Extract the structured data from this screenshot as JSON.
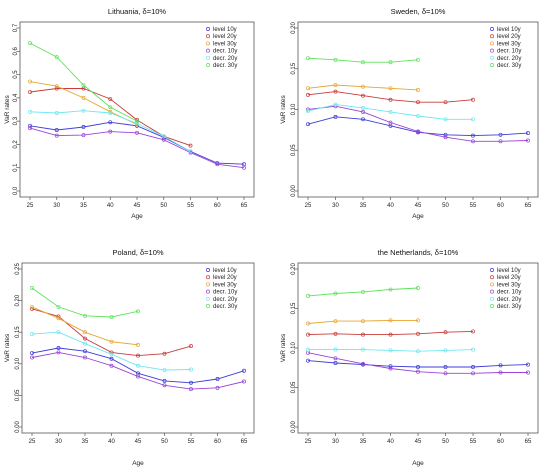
{
  "chart_data": [
    {
      "type": "line",
      "title": "Lithuania, δ=10%",
      "xlabel": "Age",
      "ylabel": "VaR rates",
      "ylim": [
        0,
        0.7
      ],
      "yticks": [
        0.0,
        0.1,
        0.2,
        0.3,
        0.4,
        0.5,
        0.6,
        0.7
      ],
      "ytick_labels": [
        "0.0",
        "0.1",
        "0.2",
        "0.3",
        "0.4",
        "0.5",
        "0.6",
        "0.7"
      ],
      "xlim": [
        25,
        65
      ],
      "xticks": [
        25,
        30,
        35,
        40,
        45,
        50,
        55,
        60,
        65
      ],
      "legend_position": "top-right",
      "series": [
        {
          "name": "level 10y",
          "color": "#3c3cd8",
          "x": [
            25,
            30,
            35,
            40,
            45,
            50,
            55,
            60,
            65
          ],
          "values": [
            0.28,
            0.262,
            0.275,
            0.295,
            0.28,
            0.23,
            0.17,
            0.12,
            0.115
          ]
        },
        {
          "name": "level 20y",
          "color": "#c83c3c",
          "x": [
            25,
            30,
            35,
            40,
            45,
            50,
            55
          ],
          "values": [
            0.425,
            0.44,
            0.44,
            0.395,
            0.305,
            0.235,
            0.195
          ]
        },
        {
          "name": "level 30y",
          "color": "#e6a632",
          "x": [
            25,
            30,
            35,
            40,
            45
          ],
          "values": [
            0.47,
            0.45,
            0.4,
            0.34,
            0.285
          ]
        },
        {
          "name": "decr. 10y",
          "color": "#9b45d6",
          "x": [
            25,
            30,
            35,
            40,
            45,
            50,
            55,
            60,
            65
          ],
          "values": [
            0.27,
            0.238,
            0.24,
            0.255,
            0.25,
            0.22,
            0.165,
            0.115,
            0.1
          ]
        },
        {
          "name": "decr. 20y",
          "color": "#6fe8f0",
          "x": [
            25,
            30,
            35,
            40,
            45,
            50,
            55
          ],
          "values": [
            0.34,
            0.335,
            0.345,
            0.335,
            0.29,
            0.235,
            0.17
          ]
        },
        {
          "name": "decr. 30y",
          "color": "#5ee35e",
          "x": [
            25,
            30,
            35,
            40,
            45
          ],
          "values": [
            0.635,
            0.575,
            0.455,
            0.36,
            0.3
          ]
        }
      ]
    },
    {
      "type": "line",
      "title": "Sweden, δ=10%",
      "xlabel": "Age",
      "ylabel": "VaR rates",
      "ylim": [
        0,
        0.2
      ],
      "yticks": [
        0.0,
        0.05,
        0.1,
        0.15,
        0.2
      ],
      "ytick_labels": [
        "0.00",
        "0.05",
        "0.10",
        "0.15",
        "0.20"
      ],
      "xlim": [
        25,
        65
      ],
      "xticks": [
        25,
        30,
        35,
        40,
        45,
        50,
        55,
        60,
        65
      ],
      "legend_position": "top-right",
      "series": [
        {
          "name": "level 10y",
          "color": "#3c3cd8",
          "x": [
            25,
            30,
            35,
            40,
            45,
            50,
            55,
            60,
            65
          ],
          "values": [
            0.082,
            0.091,
            0.088,
            0.08,
            0.072,
            0.069,
            0.068,
            0.069,
            0.071
          ]
        },
        {
          "name": "level 20y",
          "color": "#c83c3c",
          "x": [
            25,
            30,
            35,
            40,
            45,
            50,
            55
          ],
          "values": [
            0.118,
            0.122,
            0.117,
            0.112,
            0.109,
            0.109,
            0.112
          ]
        },
        {
          "name": "level 30y",
          "color": "#e6a632",
          "x": [
            25,
            30,
            35,
            40,
            45
          ],
          "values": [
            0.126,
            0.13,
            0.128,
            0.126,
            0.124
          ]
        },
        {
          "name": "decr. 10y",
          "color": "#9b45d6",
          "x": [
            25,
            30,
            35,
            40,
            45,
            50,
            55,
            60,
            65
          ],
          "values": [
            0.1,
            0.104,
            0.097,
            0.084,
            0.073,
            0.066,
            0.061,
            0.061,
            0.062
          ]
        },
        {
          "name": "decr. 20y",
          "color": "#6fe8f0",
          "x": [
            25,
            30,
            35,
            40,
            45,
            50,
            55
          ],
          "values": [
            0.098,
            0.106,
            0.102,
            0.097,
            0.092,
            0.088,
            0.088
          ]
        },
        {
          "name": "decr. 30y",
          "color": "#5ee35e",
          "x": [
            25,
            30,
            35,
            40,
            45
          ],
          "values": [
            0.163,
            0.161,
            0.158,
            0.158,
            0.161
          ]
        }
      ]
    },
    {
      "type": "line",
      "title": "Poland, δ=10%",
      "xlabel": "Age",
      "ylabel": "VaR rates",
      "ylim": [
        0,
        0.25
      ],
      "yticks": [
        0.0,
        0.05,
        0.1,
        0.15,
        0.2,
        0.25
      ],
      "ytick_labels": [
        "0.00",
        "0.05",
        "0.10",
        "0.15",
        "0.20",
        "0.25"
      ],
      "xlim": [
        25,
        65
      ],
      "xticks": [
        25,
        30,
        35,
        40,
        45,
        50,
        55,
        60,
        65
      ],
      "legend_position": "top-right",
      "series": [
        {
          "name": "level 10y",
          "color": "#3c3cd8",
          "x": [
            25,
            30,
            35,
            40,
            45,
            50,
            55,
            60,
            65
          ],
          "values": [
            0.117,
            0.125,
            0.12,
            0.108,
            0.085,
            0.073,
            0.07,
            0.076,
            0.089
          ]
        },
        {
          "name": "level 20y",
          "color": "#c83c3c",
          "x": [
            25,
            30,
            35,
            40,
            45,
            50,
            55
          ],
          "values": [
            0.187,
            0.175,
            0.14,
            0.118,
            0.113,
            0.116,
            0.128
          ]
        },
        {
          "name": "level 30y",
          "color": "#e6a632",
          "x": [
            25,
            30,
            35,
            40,
            45
          ],
          "values": [
            0.19,
            0.172,
            0.15,
            0.135,
            0.13
          ]
        },
        {
          "name": "decr. 10y",
          "color": "#9b45d6",
          "x": [
            25,
            30,
            35,
            40,
            45,
            50,
            55,
            60,
            65
          ],
          "values": [
            0.11,
            0.118,
            0.11,
            0.097,
            0.08,
            0.066,
            0.06,
            0.062,
            0.072
          ]
        },
        {
          "name": "decr. 20y",
          "color": "#6fe8f0",
          "x": [
            25,
            30,
            35,
            40,
            45,
            50,
            55
          ],
          "values": [
            0.147,
            0.15,
            0.132,
            0.115,
            0.097,
            0.09,
            0.091
          ]
        },
        {
          "name": "decr. 30y",
          "color": "#5ee35e",
          "x": [
            25,
            30,
            35,
            40,
            45
          ],
          "values": [
            0.22,
            0.19,
            0.176,
            0.174,
            0.183
          ]
        }
      ]
    },
    {
      "type": "line",
      "title": "the Netherlands, δ=10%",
      "xlabel": "Age",
      "ylabel": "VaR rates",
      "ylim": [
        0,
        0.2
      ],
      "yticks": [
        0.0,
        0.05,
        0.1,
        0.15,
        0.2
      ],
      "ytick_labels": [
        "0.00",
        "0.05",
        "0.10",
        "0.15",
        "0.20"
      ],
      "xlim": [
        25,
        65
      ],
      "xticks": [
        25,
        30,
        35,
        40,
        45,
        50,
        55,
        60,
        65
      ],
      "legend_position": "top-right",
      "series": [
        {
          "name": "level 10y",
          "color": "#3c3cd8",
          "x": [
            25,
            30,
            35,
            40,
            45,
            50,
            55,
            60,
            65
          ],
          "values": [
            0.084,
            0.081,
            0.079,
            0.077,
            0.076,
            0.076,
            0.076,
            0.078,
            0.079
          ]
        },
        {
          "name": "level 20y",
          "color": "#c83c3c",
          "x": [
            25,
            30,
            35,
            40,
            45,
            50,
            55
          ],
          "values": [
            0.117,
            0.118,
            0.117,
            0.117,
            0.118,
            0.12,
            0.121
          ]
        },
        {
          "name": "level 30y",
          "color": "#e6a632",
          "x": [
            25,
            30,
            35,
            40,
            45
          ],
          "values": [
            0.131,
            0.134,
            0.134,
            0.135,
            0.135
          ]
        },
        {
          "name": "decr. 10y",
          "color": "#9b45d6",
          "x": [
            25,
            30,
            35,
            40,
            45,
            50,
            55,
            60,
            65
          ],
          "values": [
            0.094,
            0.087,
            0.08,
            0.074,
            0.07,
            0.068,
            0.068,
            0.069,
            0.069
          ]
        },
        {
          "name": "decr. 20y",
          "color": "#6fe8f0",
          "x": [
            25,
            30,
            35,
            40,
            45,
            50,
            55
          ],
          "values": [
            0.098,
            0.098,
            0.098,
            0.097,
            0.096,
            0.097,
            0.098
          ]
        },
        {
          "name": "decr. 30y",
          "color": "#5ee35e",
          "x": [
            25,
            30,
            35,
            40,
            45
          ],
          "values": [
            0.166,
            0.169,
            0.171,
            0.174,
            0.176
          ]
        }
      ]
    }
  ]
}
